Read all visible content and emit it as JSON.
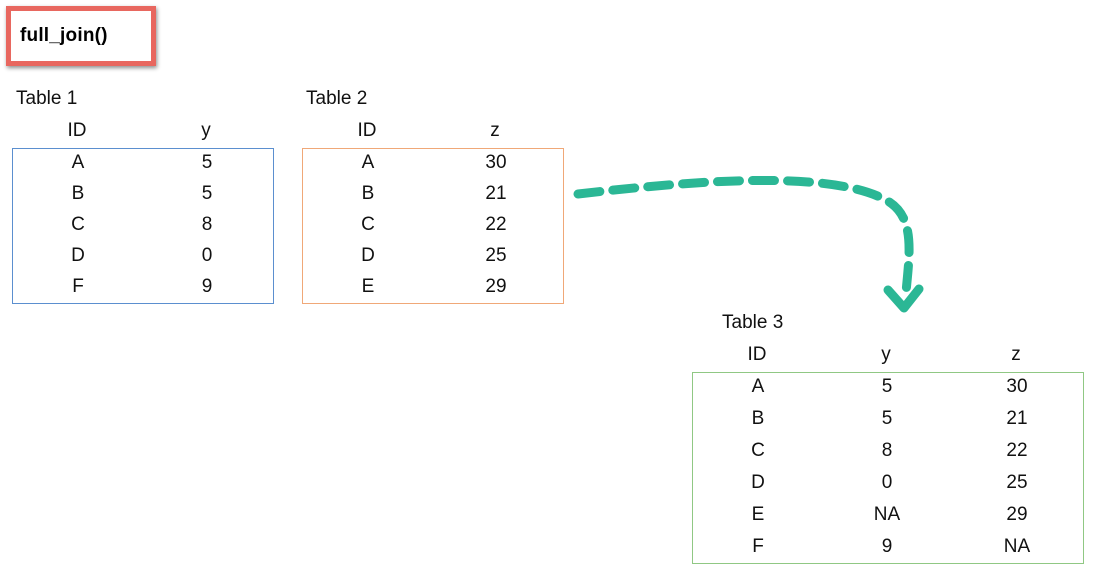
{
  "function_label": "full_join()",
  "colors": {
    "function_box_border": "#e8675f",
    "table1_border": "#5b8fcf",
    "table2_border": "#f0a878",
    "table3_border": "#90c884",
    "arrow": "#2bb795"
  },
  "table1": {
    "title": "Table 1",
    "columns": [
      "ID",
      "y"
    ],
    "rows": [
      [
        "A",
        "5"
      ],
      [
        "B",
        "5"
      ],
      [
        "C",
        "8"
      ],
      [
        "D",
        "0"
      ],
      [
        "F",
        "9"
      ]
    ]
  },
  "table2": {
    "title": "Table 2",
    "columns": [
      "ID",
      "z"
    ],
    "rows": [
      [
        "A",
        "30"
      ],
      [
        "B",
        "21"
      ],
      [
        "C",
        "22"
      ],
      [
        "D",
        "25"
      ],
      [
        "E",
        "29"
      ]
    ]
  },
  "table3": {
    "title": "Table 3",
    "columns": [
      "ID",
      "y",
      "z"
    ],
    "rows": [
      [
        "A",
        "5",
        "30"
      ],
      [
        "B",
        "5",
        "21"
      ],
      [
        "C",
        "8",
        "22"
      ],
      [
        "D",
        "0",
        "25"
      ],
      [
        "E",
        "NA",
        "29"
      ],
      [
        "F",
        "9",
        "NA"
      ]
    ]
  }
}
